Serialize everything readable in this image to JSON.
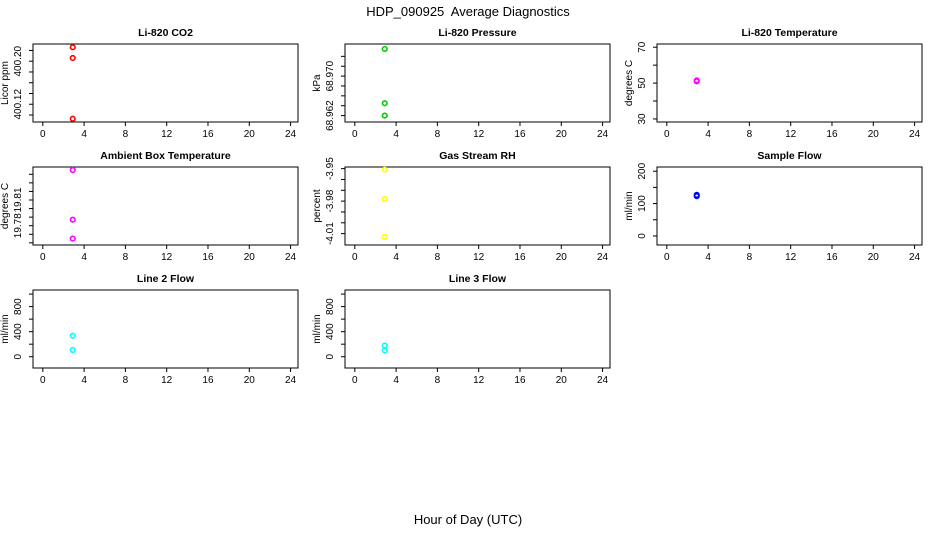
{
  "figure": {
    "title": "HDP_090925  Average Diagnostics",
    "xlabel": "Hour of Day (UTC)"
  },
  "x_axis": {
    "ticks": [
      0,
      4,
      8,
      12,
      16,
      20,
      24
    ],
    "lim": [
      -0.95,
      24.72
    ]
  },
  "chart_data": [
    {
      "type": "scatter",
      "title": "Li-820 CO2",
      "ylabel": "Licor ppm",
      "color": "#FF0000",
      "marker": "open-circle",
      "x": [
        2.9,
        2.9,
        2.9
      ],
      "y": [
        400.226,
        400.206,
        400.093
      ],
      "ylim": [
        400.087,
        400.232
      ],
      "yticks": [
        {
          "v": 400.1,
          "l": ""
        },
        {
          "v": 400.12,
          "l": "400.12"
        },
        {
          "v": 400.14,
          "l": ""
        },
        {
          "v": 400.16,
          "l": ""
        },
        {
          "v": 400.18,
          "l": ""
        },
        {
          "v": 400.2,
          "l": "400.20"
        },
        {
          "v": 400.22,
          "l": ""
        }
      ]
    },
    {
      "type": "scatter",
      "title": "Li-820 Pressure",
      "ylabel": "kPa",
      "color": "#00CD00",
      "marker": "open-circle",
      "x": [
        2.9,
        2.9,
        2.9
      ],
      "y": [
        68.9755,
        68.9645,
        68.962
      ],
      "ylim": [
        68.9607,
        68.9765
      ],
      "yticks": [
        {
          "v": 68.962,
          "l": "68.962"
        },
        {
          "v": 68.964,
          "l": ""
        },
        {
          "v": 68.966,
          "l": ""
        },
        {
          "v": 68.968,
          "l": ""
        },
        {
          "v": 68.97,
          "l": "68.970"
        },
        {
          "v": 68.972,
          "l": ""
        },
        {
          "v": 68.974,
          "l": ""
        }
      ]
    },
    {
      "type": "scatter",
      "title": "Li-820 Temperature",
      "ylabel": "degrees C",
      "color": "#FF00FF",
      "marker": "open-circle",
      "x": [
        2.9,
        2.9
      ],
      "y": [
        51.5,
        51.0
      ],
      "ylim": [
        28.3,
        71.8
      ],
      "yticks": [
        {
          "v": 30,
          "l": "30"
        },
        {
          "v": 40,
          "l": ""
        },
        {
          "v": 50,
          "l": "50"
        },
        {
          "v": 60,
          "l": ""
        },
        {
          "v": 70,
          "l": "70"
        }
      ]
    },
    {
      "type": "scatter",
      "title": "Ambient Box Temperature",
      "ylabel": "degrees C",
      "color": "#FF00FF",
      "marker": "open-circle",
      "x": [
        2.9,
        2.9,
        2.9
      ],
      "y": [
        19.845,
        19.787,
        19.765
      ],
      "ylim": [
        19.7575,
        19.8485
      ],
      "yticks": [
        {
          "v": 19.76,
          "l": ""
        },
        {
          "v": 19.77,
          "l": ""
        },
        {
          "v": 19.78,
          "l": "19.78"
        },
        {
          "v": 19.79,
          "l": ""
        },
        {
          "v": 19.8,
          "l": ""
        },
        {
          "v": 19.81,
          "l": "19.81"
        },
        {
          "v": 19.82,
          "l": ""
        },
        {
          "v": 19.83,
          "l": ""
        },
        {
          "v": 19.84,
          "l": ""
        }
      ]
    },
    {
      "type": "scatter",
      "title": "Gas Stream RH",
      "ylabel": "percent",
      "color": "#FFFF00",
      "marker": "open-circle",
      "x": [
        2.9,
        2.9,
        2.9
      ],
      "y": [
        -3.951,
        -3.978,
        -4.013
      ],
      "ylim": [
        -4.0205,
        -3.9485
      ],
      "yticks": [
        {
          "v": -4.01,
          "l": "-4.01"
        },
        {
          "v": -4.0,
          "l": ""
        },
        {
          "v": -3.99,
          "l": ""
        },
        {
          "v": -3.98,
          "l": "-3.98"
        },
        {
          "v": -3.97,
          "l": ""
        },
        {
          "v": -3.96,
          "l": ""
        },
        {
          "v": -3.95,
          "l": "-3.95"
        }
      ]
    },
    {
      "type": "scatter",
      "title": "Sample Flow",
      "ylabel": "ml/min",
      "color": "#0000FF",
      "marker": "open-circle",
      "x": [
        2.9,
        2.9
      ],
      "y": [
        127,
        123
      ],
      "ylim": [
        -28,
        213
      ],
      "yticks": [
        {
          "v": 0,
          "l": "0"
        },
        {
          "v": 50,
          "l": ""
        },
        {
          "v": 100,
          "l": "100"
        },
        {
          "v": 150,
          "l": ""
        },
        {
          "v": 200,
          "l": "200"
        }
      ]
    },
    {
      "type": "scatter",
      "title": "Line 2 Flow",
      "ylabel": "ml/min",
      "color": "#00FFFF",
      "marker": "open-circle",
      "x": [
        2.9,
        2.9
      ],
      "y": [
        335,
        107
      ],
      "ylim": [
        -180,
        1065
      ],
      "yticks": [
        {
          "v": 0,
          "l": "0"
        },
        {
          "v": 200,
          "l": ""
        },
        {
          "v": 400,
          "l": "400"
        },
        {
          "v": 600,
          "l": ""
        },
        {
          "v": 800,
          "l": "800"
        },
        {
          "v": 1000,
          "l": ""
        }
      ]
    },
    {
      "type": "scatter",
      "title": "Line 3 Flow",
      "ylabel": "ml/min",
      "color": "#00FFFF",
      "marker": "open-circle",
      "x": [
        2.9,
        2.9
      ],
      "y": [
        180,
        100
      ],
      "ylim": [
        -180,
        1065
      ],
      "yticks": [
        {
          "v": 0,
          "l": "0"
        },
        {
          "v": 200,
          "l": ""
        },
        {
          "v": 400,
          "l": "400"
        },
        {
          "v": 600,
          "l": ""
        },
        {
          "v": 800,
          "l": "800"
        },
        {
          "v": 1000,
          "l": ""
        }
      ]
    }
  ]
}
